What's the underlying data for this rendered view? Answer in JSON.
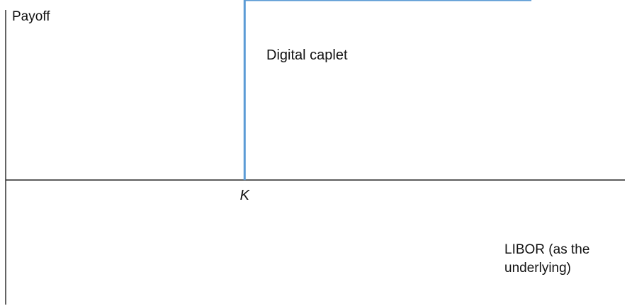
{
  "chart_data": {
    "type": "line",
    "title": "Digital caplet",
    "ylabel": "Payoff",
    "xlabel_lines": [
      "LIBOR (as the",
      "underlying)"
    ],
    "strike_label": "K",
    "strike": 1,
    "payout": 1,
    "xlim": [
      0,
      2.6
    ],
    "ylim": [
      -0.7,
      1.0
    ],
    "x": [
      1,
      1,
      2.2
    ],
    "y": [
      0,
      1,
      1
    ],
    "grid": false,
    "colors": {
      "payoff": "#5b9bd5",
      "axis": "#222222"
    }
  }
}
